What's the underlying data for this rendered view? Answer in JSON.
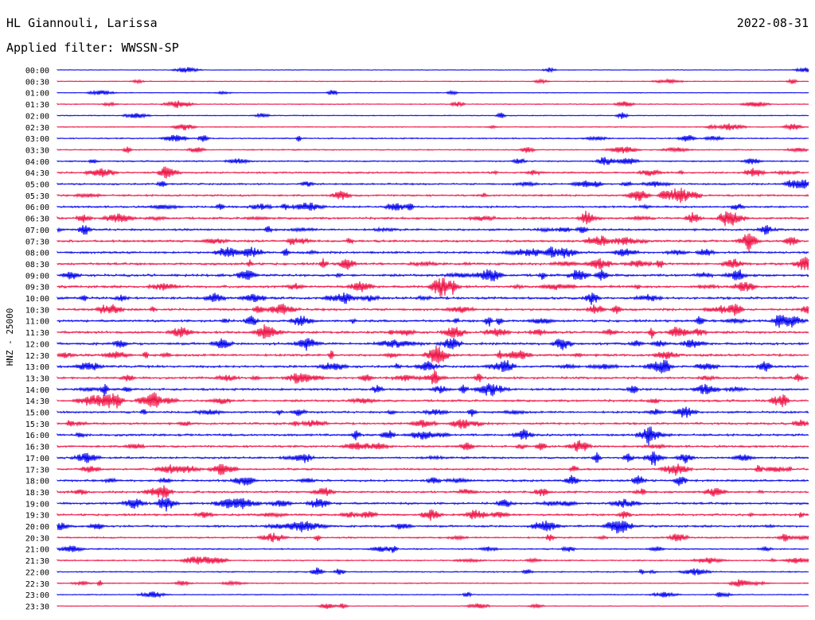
{
  "header": {
    "station": "HL Giannouli, Larissa",
    "date": "2022-08-31",
    "filter": "Applied filter: WWSSN-SP"
  },
  "chart_data": {
    "type": "line",
    "title": "HL Giannouli, Larissa",
    "ylabel": "HNZ - 25000",
    "row_labels": [
      "00:00",
      "00:30",
      "01:00",
      "01:30",
      "02:00",
      "02:30",
      "03:00",
      "03:30",
      "04:00",
      "04:30",
      "05:00",
      "05:30",
      "06:00",
      "06:30",
      "07:00",
      "07:30",
      "08:00",
      "08:30",
      "09:00",
      "09:30",
      "10:00",
      "10:30",
      "11:00",
      "11:30",
      "12:00",
      "12:30",
      "13:00",
      "13:30",
      "14:00",
      "14:30",
      "15:00",
      "15:30",
      "16:00",
      "16:30",
      "17:00",
      "17:30",
      "18:00",
      "18:30",
      "19:00",
      "19:30",
      "20:00",
      "20:30",
      "21:00",
      "21:30",
      "22:00",
      "22:30",
      "23:00",
      "23:30"
    ],
    "row_colors": [
      "#0000ee",
      "#ee1144"
    ],
    "activity": [
      0.12,
      0.18,
      0.15,
      0.25,
      0.2,
      0.25,
      0.35,
      0.35,
      0.4,
      0.55,
      0.55,
      0.6,
      0.65,
      0.75,
      0.7,
      0.75,
      0.75,
      0.8,
      0.85,
      0.85,
      0.85,
      0.8,
      0.8,
      0.8,
      0.85,
      0.8,
      0.8,
      0.8,
      0.75,
      0.75,
      0.7,
      0.7,
      0.75,
      0.7,
      0.65,
      0.65,
      0.7,
      0.7,
      0.75,
      0.7,
      0.7,
      0.5,
      0.4,
      0.4,
      0.35,
      0.3,
      0.25,
      0.2
    ]
  }
}
